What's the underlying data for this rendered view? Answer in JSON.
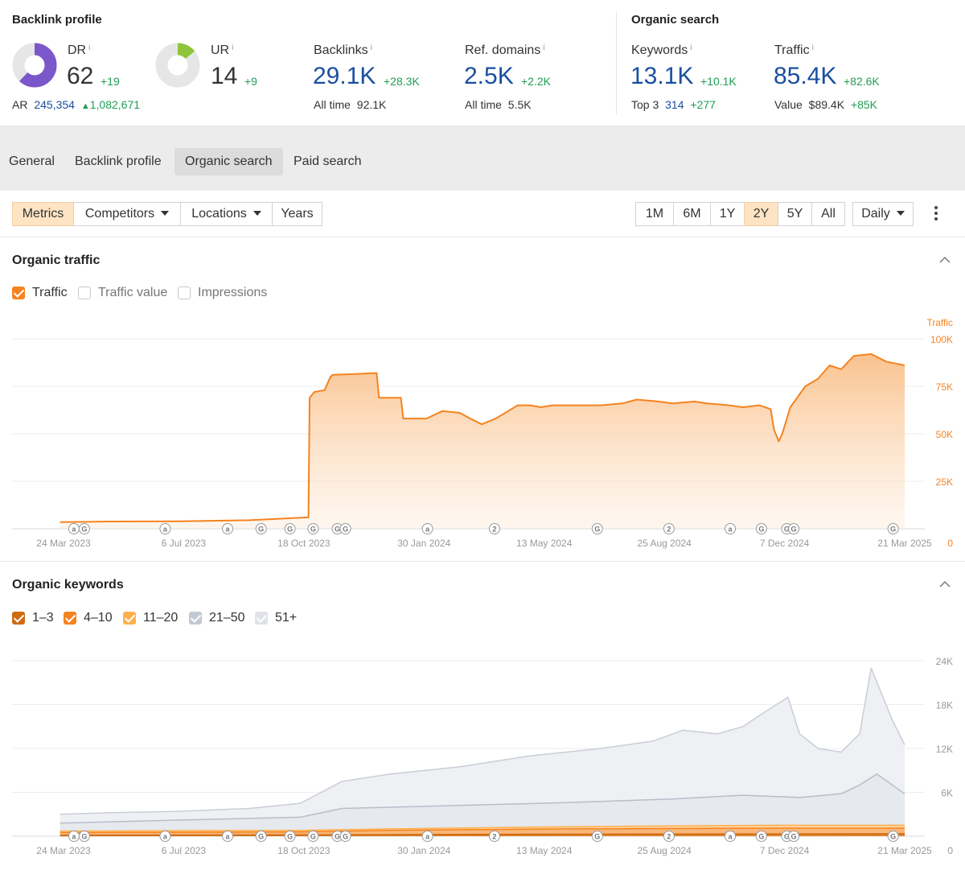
{
  "backlink_profile": {
    "title": "Backlink profile",
    "dr": {
      "label": "DR",
      "info": "i",
      "value": "62",
      "delta": "+19",
      "ring_fraction": 0.62
    },
    "ar": {
      "label": "AR",
      "value": "245,354",
      "delta": "1,082,671"
    },
    "ur": {
      "label": "UR",
      "info": "i",
      "value": "14",
      "delta": "+9",
      "ring_fraction": 0.14
    },
    "backlinks": {
      "label": "Backlinks",
      "info": "i",
      "value": "29.1K",
      "delta": "+28.3K",
      "sub_label": "All time",
      "sub_value": "92.1K"
    },
    "ref_domains": {
      "label": "Ref. domains",
      "info": "i",
      "value": "2.5K",
      "delta": "+2.2K",
      "sub_label": "All time",
      "sub_value": "5.5K"
    }
  },
  "organic_search": {
    "title": "Organic search",
    "keywords": {
      "label": "Keywords",
      "info": "i",
      "value": "13.1K",
      "delta": "+10.1K",
      "sub_label": "Top 3",
      "sub_value": "314",
      "sub_delta": "+277"
    },
    "traffic": {
      "label": "Traffic",
      "info": "i",
      "value": "85.4K",
      "delta": "+82.6K",
      "sub_label": "Value",
      "sub_value": "$89.4K",
      "sub_delta": "+85K"
    }
  },
  "tabs": [
    {
      "label": "General",
      "active": false
    },
    {
      "label": "Backlink profile",
      "active": false
    },
    {
      "label": "Organic search",
      "active": true
    },
    {
      "label": "Paid search",
      "active": false
    }
  ],
  "toolbar": {
    "metrics": "Metrics",
    "competitors": "Competitors",
    "locations": "Locations",
    "years": "Years",
    "ranges": [
      "1M",
      "6M",
      "1Y",
      "2Y",
      "5Y",
      "All"
    ],
    "selected_range": "2Y",
    "interval": "Daily"
  },
  "colors": {
    "orange": "#f5831f",
    "orange_light": "#ffb04d",
    "orange_dark": "#cf6a12",
    "blue_link": "#1a4fa0",
    "green": "#1f9e54",
    "purple": "#7b57c9",
    "lime": "#8fc43a",
    "grey_series": "#c8ccd4"
  },
  "organic_traffic": {
    "title": "Organic traffic",
    "checkboxes": [
      {
        "label": "Traffic",
        "checked": true
      },
      {
        "label": "Traffic value",
        "checked": false
      },
      {
        "label": "Impressions",
        "checked": false
      }
    ]
  },
  "organic_keywords": {
    "title": "Organic keywords",
    "checkboxes": [
      {
        "label": "1–3",
        "checked": true
      },
      {
        "label": "4–10",
        "checked": true
      },
      {
        "label": "11–20",
        "checked": true
      },
      {
        "label": "21–50",
        "checked": true
      },
      {
        "label": "51+",
        "checked": true
      }
    ]
  },
  "chart_data": [
    {
      "type": "area",
      "axis_label": "Traffic",
      "ylim": [
        0,
        100000
      ],
      "y_ticks": [
        "100K",
        "75K",
        "50K",
        "25K",
        "0"
      ],
      "x_ticks": [
        "24 Mar 2023",
        "6 Jul 2023",
        "18 Oct 2023",
        "30 Jan 2024",
        "13 May 2024",
        "25 Aug 2024",
        "7 Dec 2024",
        "21 Mar 2025"
      ],
      "x_tick_values": [
        "2023-03-24",
        "2023-07-06",
        "2023-10-18",
        "2024-01-30",
        "2024-05-13",
        "2024-08-25",
        "2024-12-07",
        "2025-03-21"
      ],
      "grid": true,
      "series": [
        {
          "name": "Traffic",
          "x": [
            "2023-03-21",
            "2023-05-01",
            "2023-07-01",
            "2023-09-01",
            "2023-10-22",
            "2023-10-23",
            "2023-10-27",
            "2023-11-05",
            "2023-11-10",
            "2023-11-12",
            "2023-12-01",
            "2023-12-20",
            "2023-12-22",
            "2024-01-10",
            "2024-01-12",
            "2024-01-20",
            "2024-02-01",
            "2024-02-15",
            "2024-03-01",
            "2024-03-10",
            "2024-03-20",
            "2024-04-01",
            "2024-04-20",
            "2024-05-01",
            "2024-05-10",
            "2024-05-20",
            "2024-06-01",
            "2024-06-20",
            "2024-07-01",
            "2024-07-20",
            "2024-08-01",
            "2024-08-20",
            "2024-09-01",
            "2024-09-20",
            "2024-10-01",
            "2024-10-20",
            "2024-11-01",
            "2024-11-15",
            "2024-11-25",
            "2024-11-28",
            "2024-12-02",
            "2024-12-05",
            "2024-12-12",
            "2024-12-25",
            "2025-01-05",
            "2025-01-15",
            "2025-01-25",
            "2025-02-05",
            "2025-02-20",
            "2025-03-05",
            "2025-03-21"
          ],
          "y": [
            3500,
            3800,
            3900,
            4500,
            6000,
            69000,
            72000,
            73000,
            80000,
            81000,
            81500,
            82000,
            69000,
            69000,
            58000,
            58000,
            58000,
            62000,
            61000,
            58000,
            55000,
            58000,
            65000,
            65000,
            64000,
            65000,
            65000,
            65000,
            65000,
            66000,
            68000,
            67000,
            66000,
            67000,
            66000,
            65000,
            64000,
            65000,
            63000,
            52000,
            46000,
            50000,
            64000,
            75000,
            79000,
            86000,
            84000,
            91000,
            92000,
            88000,
            86000
          ]
        }
      ]
    },
    {
      "type": "area",
      "ylim": [
        0,
        24000
      ],
      "y_ticks": [
        "24K",
        "18K",
        "12K",
        "6K",
        "0"
      ],
      "x_ticks": [
        "24 Mar 2023",
        "6 Jul 2023",
        "18 Oct 2023",
        "30 Jan 2024",
        "13 May 2024",
        "25 Aug 2024",
        "7 Dec 2024",
        "21 Mar 2025"
      ],
      "x_tick_values": [
        "2023-03-24",
        "2023-07-06",
        "2023-10-18",
        "2024-01-30",
        "2024-05-13",
        "2024-08-25",
        "2024-12-07",
        "2025-03-21"
      ],
      "grid": true,
      "series": [
        {
          "name": "51+",
          "x": [
            "2023-03-21",
            "2023-05-01",
            "2023-07-01",
            "2023-09-01",
            "2023-10-15",
            "2023-11-20",
            "2024-01-01",
            "2024-03-01",
            "2024-05-01",
            "2024-07-01",
            "2024-08-15",
            "2024-09-10",
            "2024-10-10",
            "2024-11-01",
            "2024-11-20",
            "2024-12-10",
            "2024-12-20",
            "2025-01-05",
            "2025-01-25",
            "2025-02-10",
            "2025-02-20",
            "2025-03-10",
            "2025-03-21"
          ],
          "y": [
            3000,
            3200,
            3400,
            3800,
            4500,
            7500,
            8500,
            9500,
            11000,
            12000,
            13000,
            14500,
            14000,
            15000,
            17000,
            19000,
            14000,
            12000,
            11500,
            14000,
            23000,
            16000,
            12500
          ]
        },
        {
          "name": "21–50",
          "x": [
            "2023-03-21",
            "2023-07-01",
            "2023-10-15",
            "2023-11-20",
            "2024-03-01",
            "2024-06-01",
            "2024-09-01",
            "2024-11-01",
            "2024-12-20",
            "2025-01-25",
            "2025-02-10",
            "2025-02-25",
            "2025-03-21"
          ],
          "y": [
            1800,
            2200,
            2600,
            3800,
            4200,
            4600,
            5100,
            5600,
            5300,
            5800,
            7000,
            8500,
            5800
          ]
        },
        {
          "name": "11–20",
          "x": [
            "2023-03-21",
            "2023-10-15",
            "2024-01-01",
            "2024-06-01",
            "2024-12-01",
            "2025-03-21"
          ],
          "y": [
            700,
            800,
            1000,
            1300,
            1500,
            1500
          ]
        },
        {
          "name": "4–10",
          "x": [
            "2023-03-21",
            "2023-10-15",
            "2024-01-01",
            "2024-06-01",
            "2024-12-01",
            "2025-03-21"
          ],
          "y": [
            500,
            600,
            800,
            1000,
            1100,
            1100
          ]
        },
        {
          "name": "1–3",
          "x": [
            "2023-03-21",
            "2023-10-15",
            "2024-06-01",
            "2025-03-21"
          ],
          "y": [
            100,
            150,
            250,
            300
          ]
        }
      ]
    }
  ],
  "annotations": {
    "traffic": [
      {
        "date": "2023-04-02",
        "glyph": "a"
      },
      {
        "date": "2023-04-11",
        "glyph": "G"
      },
      {
        "date": "2023-06-20",
        "glyph": "a"
      },
      {
        "date": "2023-08-13",
        "glyph": "a"
      },
      {
        "date": "2023-09-11",
        "glyph": "G"
      },
      {
        "date": "2023-10-06",
        "glyph": "G"
      },
      {
        "date": "2023-10-26",
        "glyph": "G"
      },
      {
        "date": "2023-11-16",
        "glyph": "G"
      },
      {
        "date": "2023-11-23",
        "glyph": "G"
      },
      {
        "date": "2024-02-02",
        "glyph": "a"
      },
      {
        "date": "2024-03-31",
        "glyph": "2"
      },
      {
        "date": "2024-06-28",
        "glyph": "G"
      },
      {
        "date": "2024-08-29",
        "glyph": "2"
      },
      {
        "date": "2024-10-21",
        "glyph": "a"
      },
      {
        "date": "2024-11-17",
        "glyph": "G"
      },
      {
        "date": "2024-12-09",
        "glyph": "G"
      },
      {
        "date": "2024-12-15",
        "glyph": "G"
      },
      {
        "date": "2025-03-11",
        "glyph": "G"
      }
    ],
    "keywords": [
      {
        "date": "2023-04-02",
        "glyph": "a"
      },
      {
        "date": "2023-04-11",
        "glyph": "G"
      },
      {
        "date": "2023-06-20",
        "glyph": "a"
      },
      {
        "date": "2023-08-13",
        "glyph": "a"
      },
      {
        "date": "2023-09-11",
        "glyph": "G"
      },
      {
        "date": "2023-10-06",
        "glyph": "G"
      },
      {
        "date": "2023-10-26",
        "glyph": "G"
      },
      {
        "date": "2023-11-16",
        "glyph": "G"
      },
      {
        "date": "2023-11-23",
        "glyph": "G"
      },
      {
        "date": "2024-02-02",
        "glyph": "a"
      },
      {
        "date": "2024-03-31",
        "glyph": "2"
      },
      {
        "date": "2024-06-28",
        "glyph": "G"
      },
      {
        "date": "2024-08-29",
        "glyph": "2"
      },
      {
        "date": "2024-10-21",
        "glyph": "a"
      },
      {
        "date": "2024-11-17",
        "glyph": "G"
      },
      {
        "date": "2024-12-09",
        "glyph": "G"
      },
      {
        "date": "2024-12-15",
        "glyph": "G"
      },
      {
        "date": "2025-03-11",
        "glyph": "G"
      }
    ]
  }
}
